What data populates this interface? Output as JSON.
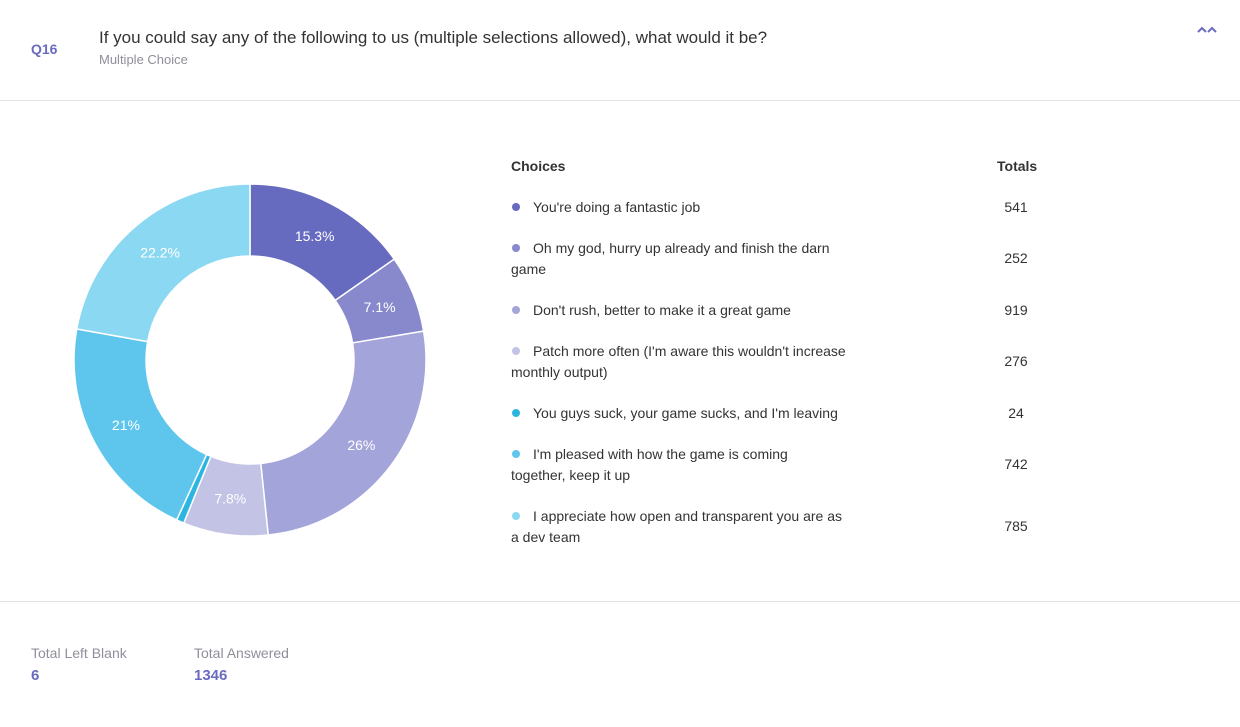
{
  "question": {
    "number": "Q16",
    "title": "If you could say any of the following to us (multiple selections allowed), what would it be?",
    "type": "Multiple Choice"
  },
  "table": {
    "choices_header": "Choices",
    "totals_header": "Totals"
  },
  "chart_data": {
    "type": "pie",
    "donut": true,
    "slices": [
      {
        "label": "You're doing a fantastic job",
        "total": 541,
        "percent": 15.3,
        "percent_label": "15.3%",
        "color": "#676bbf"
      },
      {
        "label": "Oh my god, hurry up already and finish the darn game",
        "total": 252,
        "percent": 7.1,
        "percent_label": "7.1%",
        "color": "#8789cc"
      },
      {
        "label": "Don't rush, better to make it a great game",
        "total": 919,
        "percent": 26,
        "percent_label": "26%",
        "color": "#a3a4d9"
      },
      {
        "label": "Patch more often (I'm aware this wouldn't increase monthly output)",
        "total": 276,
        "percent": 7.8,
        "percent_label": "7.8%",
        "color": "#c3c3e6"
      },
      {
        "label": "You guys suck, your game sucks, and I'm leaving",
        "total": 24,
        "percent": 0.7,
        "percent_label": "",
        "color": "#2db5e2"
      },
      {
        "label": "I'm pleased with how the game is coming together, keep it up",
        "total": 742,
        "percent": 21,
        "percent_label": "21%",
        "color": "#5ec6ec"
      },
      {
        "label": "I appreciate how open and transparent you are as a dev team",
        "total": 785,
        "percent": 22.2,
        "percent_label": "22.2%",
        "color": "#8bd8f2"
      }
    ]
  },
  "footer": {
    "blank_label": "Total Left Blank",
    "blank_value": "6",
    "answered_label": "Total Answered",
    "answered_value": "1346"
  }
}
